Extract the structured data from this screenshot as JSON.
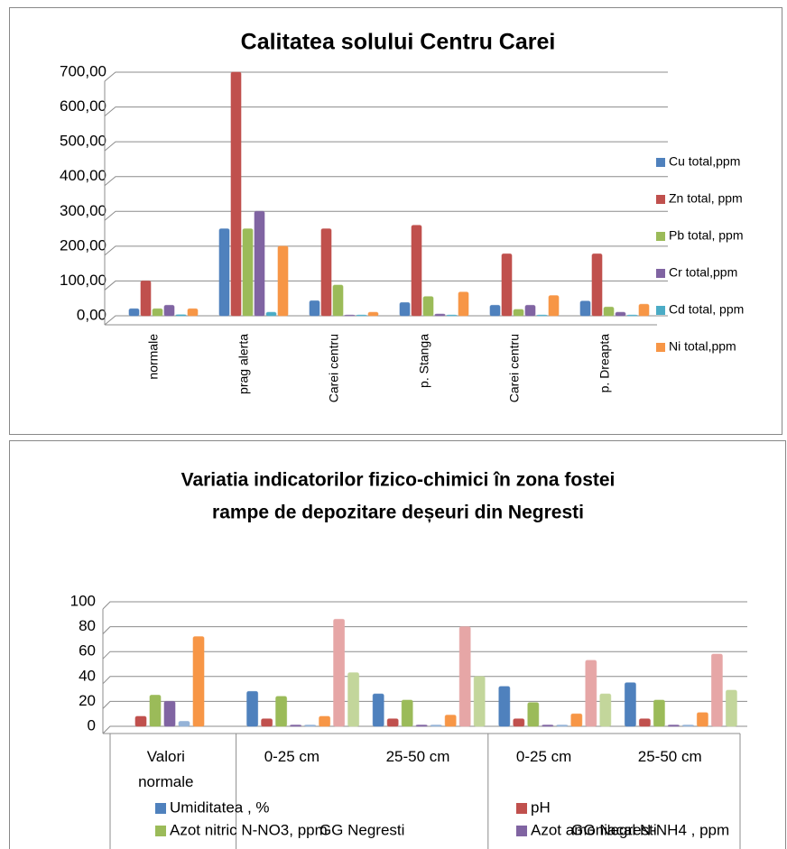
{
  "chart_data": [
    {
      "type": "bar",
      "title": "Calitatea solului Centru Carei",
      "categories": [
        "normale",
        "prag alerta",
        "Carei centru",
        "p. Stanga",
        "Carei centru",
        "p. Dreapta"
      ],
      "series": [
        {
          "name": "Cu total,ppm",
          "color": "#4f81bd",
          "values": [
            20,
            250,
            43,
            38,
            30,
            42
          ]
        },
        {
          "name": "Zn total, ppm",
          "color": "#c0504d",
          "values": [
            100,
            700,
            250,
            260,
            178,
            178
          ]
        },
        {
          "name": "Pb total, ppm",
          "color": "#9bbb59",
          "values": [
            20,
            250,
            88,
            55,
            18,
            25
          ]
        },
        {
          "name": "Cr total,ppm",
          "color": "#8064a2",
          "values": [
            30,
            300,
            2,
            5,
            30,
            10
          ]
        },
        {
          "name": "Cd total, ppm",
          "color": "#4bacc6",
          "values": [
            3,
            10,
            2,
            2,
            2,
            2
          ]
        },
        {
          "name": "Ni total,ppm",
          "color": "#f79646",
          "values": [
            20,
            200,
            10,
            68,
            58,
            33
          ]
        }
      ],
      "ylim": [
        0,
        700
      ],
      "yticks": [
        {
          "value": 0,
          "label": "0,00"
        },
        {
          "value": 100,
          "label": "100,00"
        },
        {
          "value": 200,
          "label": "200,00"
        },
        {
          "value": 300,
          "label": "300,00"
        },
        {
          "value": 400,
          "label": "400,00"
        },
        {
          "value": 500,
          "label": "500,00"
        },
        {
          "value": 600,
          "label": "600,00"
        },
        {
          "value": 700,
          "label": "700,00"
        }
      ],
      "grid": true,
      "legend": "right"
    },
    {
      "type": "bar",
      "title": [
        "Variatia indicatorilor fizico-chimici în zona fostei",
        "rampe de depozitare deșeuri din Negresti"
      ],
      "categories": [
        "Valori normale",
        "0-25 cm",
        "25-50 cm",
        "0-25 cm",
        "25-50 cm"
      ],
      "groups": [
        {
          "name": "GG Negresti",
          "start": 1,
          "end": 2
        },
        {
          "name": "GG Negresti",
          "start": 3,
          "end": 4
        }
      ],
      "series": [
        {
          "name": "Umiditatea , %",
          "color": "#4f81bd",
          "values": [
            null,
            28,
            26,
            32,
            35
          ]
        },
        {
          "name": "pH",
          "color": "#c0504d",
          "values": [
            8,
            6,
            6,
            6,
            6
          ]
        },
        {
          "name": "Azot nitric N-NO3, ppm",
          "color": "#9bbb59",
          "values": [
            25,
            24,
            21,
            19,
            21
          ]
        },
        {
          "name": "Azot amoniacal N-NH4 , ppm",
          "color": "#8064a2",
          "values": [
            20,
            1,
            1,
            1,
            1
          ]
        },
        {
          "color": "#95b3d7",
          "values": [
            4,
            1,
            1,
            1,
            1
          ]
        },
        {
          "color": "#f79646",
          "values": [
            72,
            8,
            9,
            10,
            11
          ]
        },
        {
          "color": "#e6a6a6",
          "values": [
            null,
            86,
            80,
            53,
            58
          ]
        },
        {
          "color": "#c3d69b",
          "values": [
            null,
            43,
            40,
            26,
            29
          ]
        }
      ],
      "ylim": [
        0,
        100
      ],
      "yticks": [
        0,
        20,
        40,
        60,
        80,
        100
      ],
      "grid": true,
      "legend": "bottom"
    }
  ]
}
